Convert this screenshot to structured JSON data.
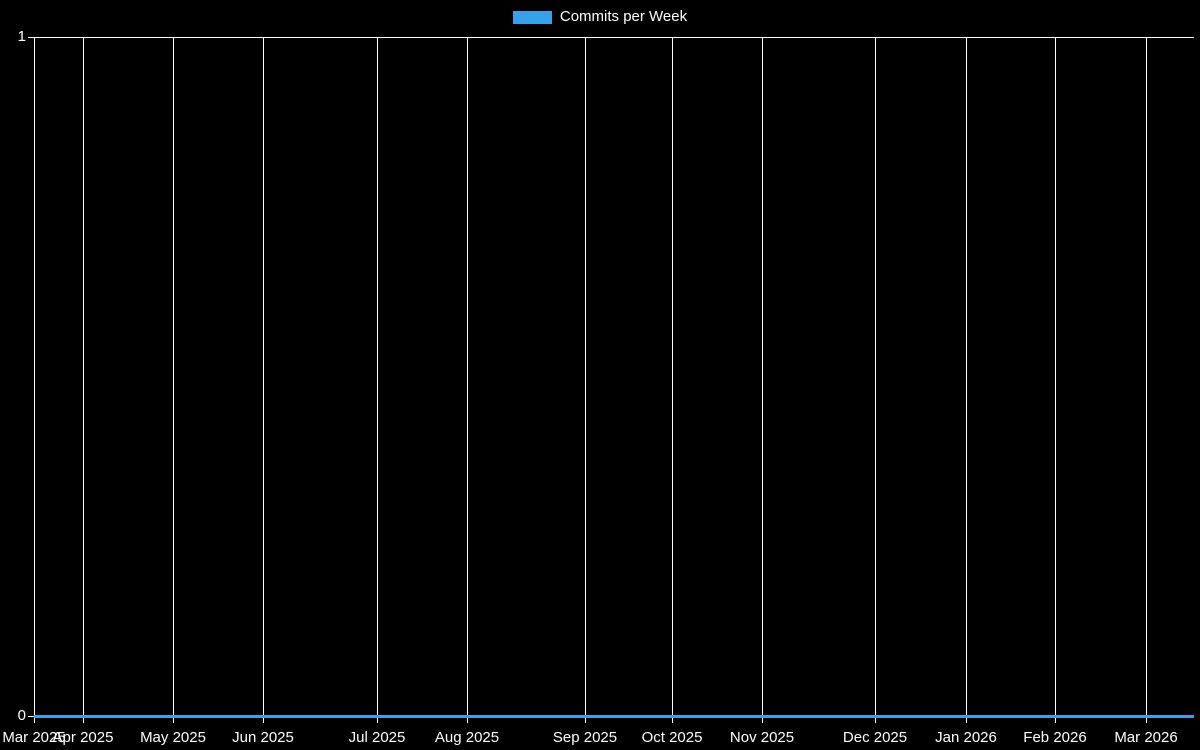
{
  "legend": {
    "label": "Commits per Week",
    "position": "top-center"
  },
  "colors": {
    "background": "#000000",
    "text": "#ffffff",
    "grid": "#ffffff",
    "series": "#36a2eb"
  },
  "chart_data": {
    "type": "line",
    "title": "",
    "legend": [
      "Commits per Week"
    ],
    "legend_position": "top-center",
    "x_unit": "week",
    "weeks_total": 52,
    "x_tick_labels": [
      "Mar 2025",
      "Apr 2025",
      "May 2025",
      "Jun 2025",
      "Jul 2025",
      "Aug 2025",
      "Sep 2025",
      "Oct 2025",
      "Nov 2025",
      "Dec 2025",
      "Jan 2026",
      "Feb 2026",
      "Mar 2026"
    ],
    "x_tick_week_indices": [
      0,
      2,
      6,
      10,
      15,
      19,
      24,
      28,
      32,
      37,
      41,
      45,
      49
    ],
    "series": [
      {
        "name": "Commits per Week",
        "color": "#36a2eb",
        "values": [
          0,
          0,
          0,
          0,
          0,
          0,
          0,
          0,
          0,
          0,
          0,
          0,
          0,
          0,
          0,
          0,
          0,
          0,
          0,
          0,
          0,
          0,
          0,
          0,
          0,
          0,
          0,
          0,
          0,
          0,
          0,
          0,
          0,
          0,
          0,
          0,
          0,
          0,
          0,
          0,
          0,
          0,
          0,
          0,
          0,
          0,
          0,
          0,
          0,
          0,
          0,
          0
        ]
      }
    ],
    "ylim": [
      0,
      1
    ],
    "y_ticks": [
      1,
      0
    ],
    "grid": "vertical-month-lines-on",
    "background": "#000000"
  }
}
